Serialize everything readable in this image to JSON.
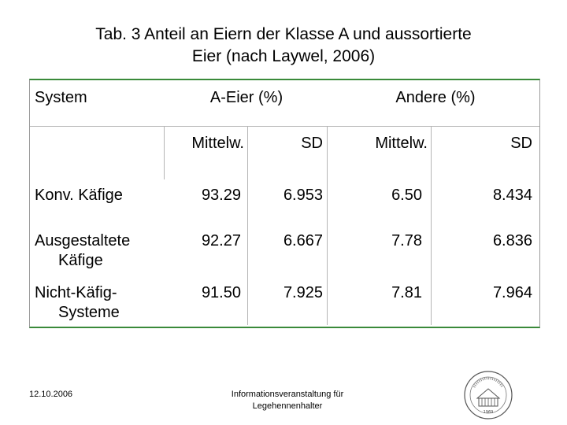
{
  "title_line1": "Tab. 3 Anteil an Eiern der Klasse A und aussortierte",
  "title_line2": "Eier (nach Laywel, 2006)",
  "table": {
    "header_system": "System",
    "header_a_eier": "A-Eier (%)",
    "header_andere": "Andere (%)",
    "sub_mittelw_1": "Mittelw.",
    "sub_sd_1": "SD",
    "sub_mittelw_2": "Mittelw.",
    "sub_sd_2": "SD",
    "rows": [
      {
        "label_line1": "Konv. Käfige",
        "label_line2": "",
        "a_mittelw": "93.29",
        "a_sd": "6.953",
        "andere_mittelw": "6.50",
        "andere_sd": "8.434"
      },
      {
        "label_line1": "Ausgestaltete",
        "label_line2": "Käfige",
        "a_mittelw": "92.27",
        "a_sd": "6.667",
        "andere_mittelw": "7.78",
        "andere_sd": "6.836"
      },
      {
        "label_line1": "Nicht-Käfig-",
        "label_line2": "Systeme",
        "a_mittelw": "91.50",
        "a_sd": "7.925",
        "andere_mittelw": "7.81",
        "andere_sd": "7.964"
      }
    ]
  },
  "footer": {
    "date": "12.10.2006",
    "event_line1": "Informationsveranstaltung für",
    "event_line2": "Legehennenhalter",
    "seal_year": "1969"
  },
  "colors": {
    "table_rule": "#3a8a3a",
    "grid": "#b5b5b5"
  }
}
